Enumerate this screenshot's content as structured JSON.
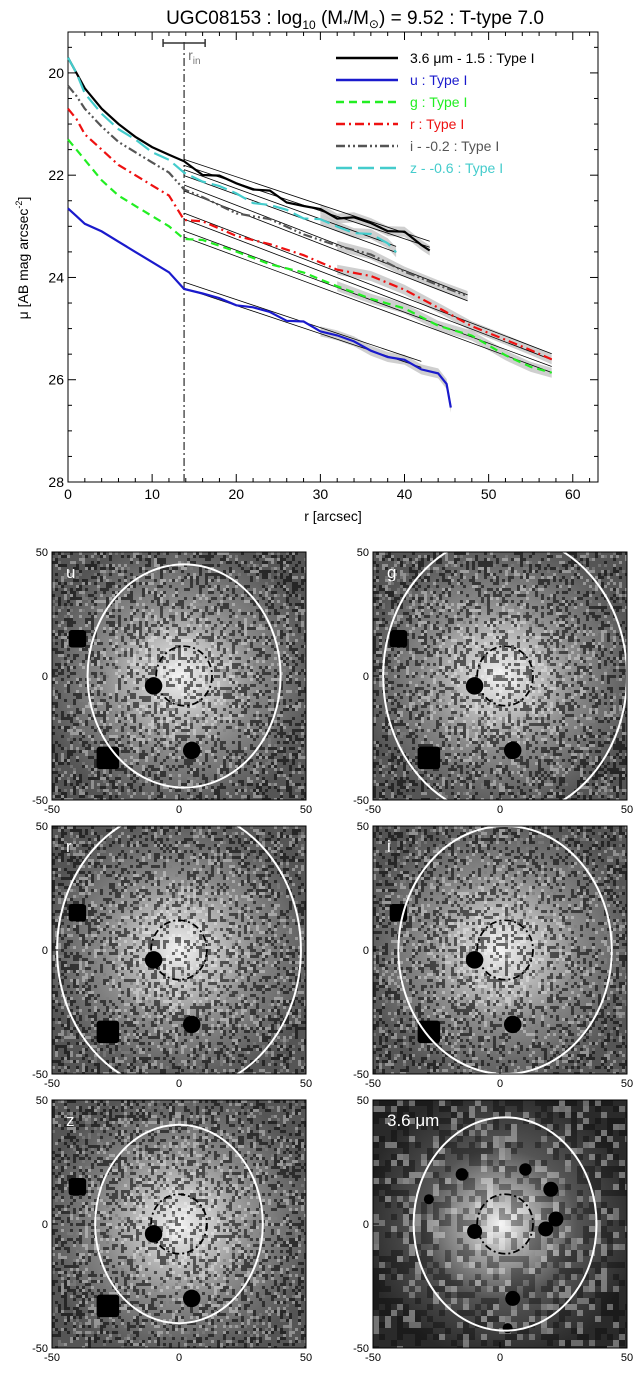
{
  "chart_data": [
    {
      "type": "line",
      "title": "UGC08153 : log",
      "title_sub": "10",
      "title_mid": " (M",
      "title_star": "*",
      "title_slash": "/M",
      "title_sun": "⊙",
      "title_end": ") = 9.52 : T-type 7.0",
      "xlabel": "r [arcsec]",
      "ylabel_main": "μ [AB mag arcsec",
      "ylabel_sup": "-2",
      "ylabel_close": "]",
      "xlim": [
        0,
        63
      ],
      "ylim": [
        28,
        19.2
      ],
      "y_inverted": true,
      "x_ticks": [
        "0",
        "10",
        "20",
        "30",
        "40",
        "50",
        "60"
      ],
      "y_ticks": [
        "20",
        "22",
        "24",
        "26",
        "28"
      ],
      "r_in": 13.8,
      "r_in_label": "r",
      "r_in_sub": "in",
      "r_in_bar": [
        11.3,
        16.3
      ],
      "legend_position": "top-right",
      "series": [
        {
          "name": "3.6 μm - 1.5 : Type I",
          "color": "#000000",
          "dash": "solid",
          "x": [
            0,
            1,
            2,
            4,
            6,
            8,
            10,
            12,
            13.8,
            16,
            18,
            20,
            22,
            24,
            26,
            28,
            30,
            32,
            34,
            36,
            38,
            40,
            42,
            43
          ],
          "y": [
            19.7,
            20.0,
            20.3,
            20.7,
            21.0,
            21.25,
            21.45,
            21.6,
            21.75,
            21.95,
            22.05,
            22.15,
            22.25,
            22.35,
            22.5,
            22.6,
            22.7,
            22.8,
            22.85,
            22.95,
            23.05,
            23.15,
            23.35,
            23.45
          ],
          "fit": [
            [
              13.8,
              21.75
            ],
            [
              43,
              23.35
            ]
          ]
        },
        {
          "name": "u : Type I",
          "color": "#1a1acc",
          "dash": "solid",
          "x": [
            0,
            1,
            2,
            4,
            6,
            8,
            10,
            12,
            13.8,
            16,
            18,
            20,
            22,
            24,
            26,
            28,
            30,
            32,
            34,
            36,
            38,
            40,
            42,
            44,
            45,
            45.5
          ],
          "y": [
            22.65,
            22.8,
            22.95,
            23.1,
            23.3,
            23.5,
            23.7,
            23.9,
            24.2,
            24.3,
            24.45,
            24.5,
            24.6,
            24.7,
            24.8,
            24.9,
            25.05,
            25.1,
            25.3,
            25.4,
            25.55,
            25.65,
            25.75,
            25.9,
            26.1,
            26.5
          ],
          "fit": [
            [
              13.8,
              24.15
            ],
            [
              42,
              25.7
            ]
          ]
        },
        {
          "name": "g : Type I",
          "color": "#22ee22",
          "dash": "dashed",
          "x": [
            0,
            1,
            2,
            4,
            6,
            8,
            10,
            12,
            13.8,
            16,
            20,
            24,
            28,
            32,
            36,
            40,
            44,
            48,
            52,
            55,
            57.5
          ],
          "y": [
            21.3,
            21.5,
            21.7,
            22.1,
            22.4,
            22.6,
            22.8,
            23.0,
            23.2,
            23.3,
            23.5,
            23.7,
            23.95,
            24.15,
            24.4,
            24.65,
            24.9,
            25.15,
            25.55,
            25.7,
            25.9
          ],
          "fit": [
            [
              13.8,
              23.15
            ],
            [
              57.5,
              25.8
            ]
          ]
        },
        {
          "name": "r : Type I",
          "color": "#ee1111",
          "dash": "dashdot",
          "x": [
            0,
            1,
            2,
            4,
            6,
            8,
            10,
            12,
            13.8,
            16,
            20,
            24,
            28,
            32,
            36,
            40,
            44,
            48,
            52,
            55,
            57.5
          ],
          "y": [
            20.7,
            20.9,
            21.2,
            21.5,
            21.8,
            22.0,
            22.2,
            22.4,
            22.85,
            22.95,
            23.15,
            23.35,
            23.6,
            23.8,
            24.0,
            24.25,
            24.55,
            25.0,
            25.2,
            25.4,
            25.65
          ],
          "fit": [
            [
              13.8,
              22.8
            ],
            [
              57.5,
              25.55
            ]
          ]
        },
        {
          "name": "i - -0.2 : Type I",
          "color": "#555555",
          "dash": "dashdotdot",
          "x": [
            0,
            1,
            2,
            4,
            6,
            8,
            10,
            12,
            13.8,
            16,
            20,
            24,
            28,
            32,
            36,
            40,
            44,
            47.5
          ],
          "y": [
            20.25,
            20.45,
            20.7,
            21.05,
            21.35,
            21.55,
            21.75,
            21.95,
            22.3,
            22.45,
            22.7,
            22.9,
            23.15,
            23.35,
            23.6,
            23.85,
            24.15,
            24.4
          ],
          "fit": [
            [
              13.8,
              22.25
            ],
            [
              47.5,
              24.4
            ]
          ]
        },
        {
          "name": "z - -0.6 : Type I",
          "color": "#44cccc",
          "dash": "longdash",
          "x": [
            0,
            1,
            2,
            4,
            6,
            8,
            10,
            12,
            13.8,
            16,
            18,
            20,
            22,
            24,
            26,
            28,
            30,
            32,
            34,
            36,
            38,
            39
          ],
          "y": [
            19.7,
            20.0,
            20.4,
            20.8,
            21.1,
            21.3,
            21.55,
            21.7,
            22.0,
            22.1,
            22.2,
            22.4,
            22.5,
            22.6,
            22.7,
            22.8,
            22.9,
            23.0,
            23.1,
            23.2,
            23.3,
            23.5
          ],
          "fit": [
            [
              13.8,
              21.95
            ],
            [
              39,
              23.45
            ]
          ]
        }
      ]
    },
    {
      "type": "heatmap",
      "panels": [
        {
          "label": "u",
          "rx": 38,
          "ry": 45,
          "cx": 2,
          "cy": 0,
          "rin_x": 11,
          "rin_y": 12,
          "x_ticks": [
            "-50",
            "0",
            "50"
          ],
          "y_ticks": [
            "50",
            "0",
            "-50"
          ],
          "dark": false
        },
        {
          "label": "g",
          "rx": 48,
          "ry": 57,
          "cx": 2,
          "cy": 0,
          "rin_x": 11,
          "rin_y": 12,
          "x_ticks": [
            "-50",
            "0",
            "50"
          ],
          "y_ticks": [
            "50",
            "0",
            "-50"
          ],
          "dark": false
        },
        {
          "label": "r",
          "rx": 48,
          "ry": 57,
          "cx": 0,
          "cy": 0,
          "rin_x": 11,
          "rin_y": 12,
          "x_ticks": [
            "-50",
            "0",
            "50"
          ],
          "y_ticks": [
            "50",
            "0",
            "-50"
          ],
          "dark": false
        },
        {
          "label": "i",
          "rx": 42,
          "ry": 50,
          "cx": 2,
          "cy": 0,
          "rin_x": 11,
          "rin_y": 12,
          "x_ticks": [
            "-50",
            "0",
            "50"
          ],
          "y_ticks": [
            "50",
            "0",
            "-50"
          ],
          "dark": false
        },
        {
          "label": "z",
          "rx": 33,
          "ry": 40,
          "cx": 0,
          "cy": 0,
          "rin_x": 11,
          "rin_y": 12,
          "x_ticks": [
            "-50",
            "0",
            "50"
          ],
          "y_ticks": [
            "50",
            "0",
            "-50"
          ],
          "dark": false
        },
        {
          "label": "3.6 μm",
          "rx": 36,
          "ry": 43,
          "cx": 2,
          "cy": 0,
          "rin_x": 11,
          "rin_y": 12,
          "x_ticks": [
            "-50",
            "0",
            "50"
          ],
          "y_ticks": [
            "50",
            "0",
            "-50"
          ],
          "dark": true
        }
      ]
    }
  ]
}
